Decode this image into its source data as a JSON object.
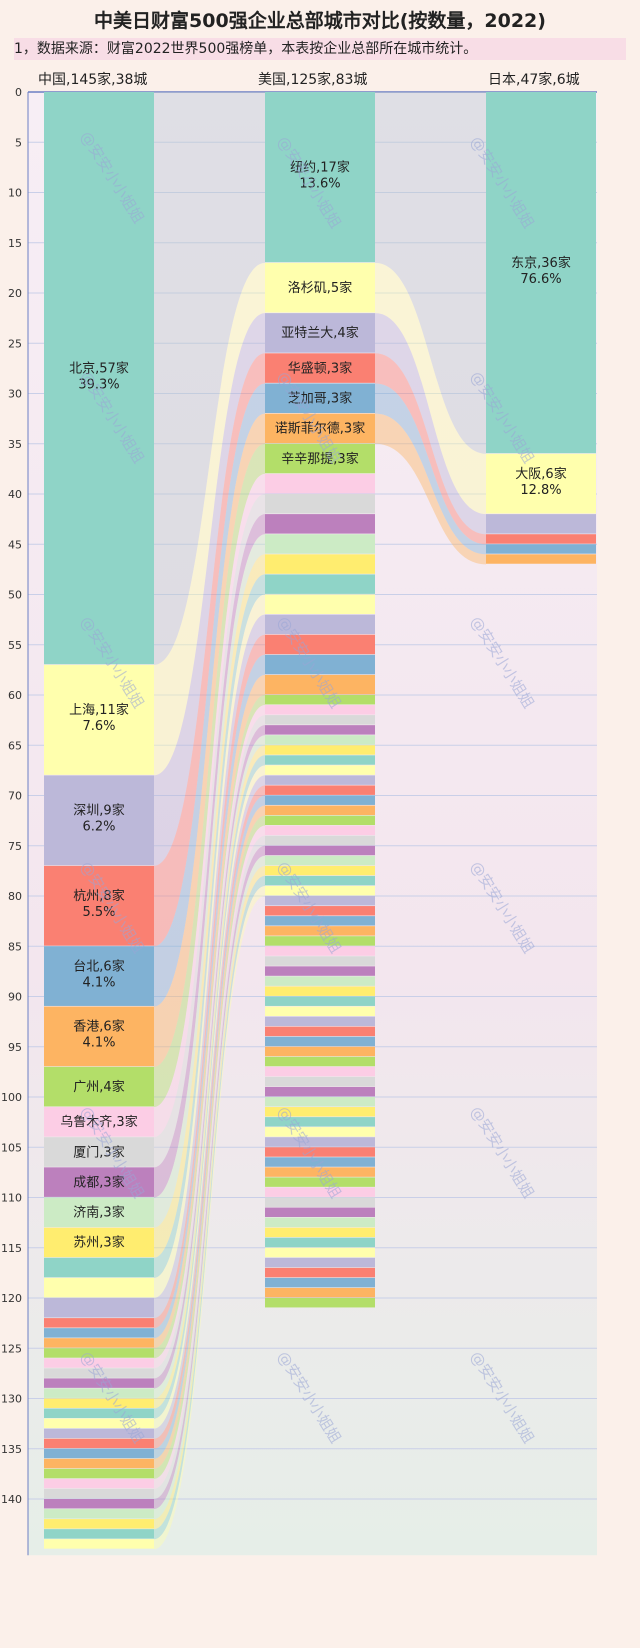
{
  "title": "中美日财富500强企业总部城市对比(按数量，2022)",
  "note": "1，数据来源：财富2022世界500强榜单，本表按企业总部所在城市统计。",
  "watermark": "@安安小小姐姐",
  "colors": {
    "background": "#fbf0ea",
    "axis": "#6c7fc4",
    "grid": "#c9cfe8",
    "band": "#bfcbcf",
    "palette": [
      "#8fd4c7",
      "#ffffad",
      "#bcb8d9",
      "#fa8072",
      "#80b1d3",
      "#fdb462",
      "#b3de69",
      "#fccde5",
      "#d9d9d9",
      "#bc80bd",
      "#ccebc5",
      "#ffed6f"
    ]
  },
  "chart_data": {
    "type": "sankey-stacked",
    "title": "中美日财富500强企业总部城市对比(按数量，2022)",
    "y_axis": {
      "min": 0,
      "max": 145,
      "ticks": [
        0,
        5,
        10,
        15,
        20,
        25,
        30,
        35,
        40,
        45,
        50,
        55,
        60,
        65,
        70,
        75,
        80,
        85,
        90,
        95,
        100,
        105,
        110,
        115,
        120,
        125,
        130,
        135,
        140
      ],
      "inverted": true
    },
    "columns": [
      {
        "key": "china",
        "header": "中国,145家,38城",
        "total": 145,
        "segments": [
          {
            "label": "北京,57家",
            "pct": "39.3%",
            "value": 57
          },
          {
            "label": "上海,11家",
            "pct": "7.6%",
            "value": 11
          },
          {
            "label": "深圳,9家",
            "pct": "6.2%",
            "value": 9
          },
          {
            "label": "杭州,8家",
            "pct": "5.5%",
            "value": 8
          },
          {
            "label": "台北,6家",
            "pct": "4.1%",
            "value": 6
          },
          {
            "label": "香港,6家",
            "pct": "4.1%",
            "value": 6
          },
          {
            "label": "广州,4家",
            "pct": "",
            "value": 4
          },
          {
            "label": "乌鲁木齐,3家",
            "pct": "",
            "value": 3
          },
          {
            "label": "厦门,3家",
            "pct": "",
            "value": 3
          },
          {
            "label": "成都,3家",
            "pct": "",
            "value": 3
          },
          {
            "label": "济南,3家",
            "pct": "",
            "value": 3
          },
          {
            "label": "苏州,3家",
            "pct": "",
            "value": 3
          },
          {
            "label": "",
            "pct": "",
            "value": 2
          },
          {
            "label": "",
            "pct": "",
            "value": 2
          },
          {
            "label": "",
            "pct": "",
            "value": 2
          },
          {
            "label": "",
            "pct": "",
            "value": 1
          },
          {
            "label": "",
            "pct": "",
            "value": 1
          },
          {
            "label": "",
            "pct": "",
            "value": 1
          },
          {
            "label": "",
            "pct": "",
            "value": 1
          },
          {
            "label": "",
            "pct": "",
            "value": 1
          },
          {
            "label": "",
            "pct": "",
            "value": 1
          },
          {
            "label": "",
            "pct": "",
            "value": 1
          },
          {
            "label": "",
            "pct": "",
            "value": 1
          },
          {
            "label": "",
            "pct": "",
            "value": 1
          },
          {
            "label": "",
            "pct": "",
            "value": 1
          },
          {
            "label": "",
            "pct": "",
            "value": 1
          },
          {
            "label": "",
            "pct": "",
            "value": 1
          },
          {
            "label": "",
            "pct": "",
            "value": 1
          },
          {
            "label": "",
            "pct": "",
            "value": 1
          },
          {
            "label": "",
            "pct": "",
            "value": 1
          },
          {
            "label": "",
            "pct": "",
            "value": 1
          },
          {
            "label": "",
            "pct": "",
            "value": 1
          },
          {
            "label": "",
            "pct": "",
            "value": 1
          },
          {
            "label": "",
            "pct": "",
            "value": 1
          },
          {
            "label": "",
            "pct": "",
            "value": 1
          },
          {
            "label": "",
            "pct": "",
            "value": 1
          },
          {
            "label": "",
            "pct": "",
            "value": 1
          },
          {
            "label": "",
            "pct": "",
            "value": 1
          }
        ]
      },
      {
        "key": "usa",
        "header": "美国,125家,83城",
        "total": 125,
        "segments": [
          {
            "label": "纽约,17家",
            "pct": "13.6%",
            "value": 17
          },
          {
            "label": "洛杉矶,5家",
            "pct": "",
            "value": 5
          },
          {
            "label": "亚特兰大,4家",
            "pct": "",
            "value": 4
          },
          {
            "label": "华盛顿,3家",
            "pct": "",
            "value": 3
          },
          {
            "label": "芝加哥,3家",
            "pct": "",
            "value": 3
          },
          {
            "label": "诺斯菲尔德,3家",
            "pct": "",
            "value": 3
          },
          {
            "label": "辛辛那提,3家",
            "pct": "",
            "value": 3
          },
          {
            "label": "",
            "pct": "",
            "value": 2
          },
          {
            "label": "",
            "pct": "",
            "value": 2
          },
          {
            "label": "",
            "pct": "",
            "value": 2
          },
          {
            "label": "",
            "pct": "",
            "value": 2
          },
          {
            "label": "",
            "pct": "",
            "value": 2
          },
          {
            "label": "",
            "pct": "",
            "value": 2
          },
          {
            "label": "",
            "pct": "",
            "value": 2
          },
          {
            "label": "",
            "pct": "",
            "value": 2
          },
          {
            "label": "",
            "pct": "",
            "value": 2
          },
          {
            "label": "",
            "pct": "",
            "value": 2
          },
          {
            "label": "",
            "pct": "",
            "value": 2
          },
          {
            "label": "",
            "pct": "",
            "value": 1
          },
          {
            "label": "",
            "pct": "",
            "value": 1
          },
          {
            "label": "",
            "pct": "",
            "value": 1
          },
          {
            "label": "",
            "pct": "",
            "value": 1
          },
          {
            "label": "",
            "pct": "",
            "value": 1
          },
          {
            "label": "",
            "pct": "",
            "value": 1
          },
          {
            "label": "",
            "pct": "",
            "value": 1
          },
          {
            "label": "",
            "pct": "",
            "value": 1
          },
          {
            "label": "",
            "pct": "",
            "value": 1
          },
          {
            "label": "",
            "pct": "",
            "value": 1
          },
          {
            "label": "",
            "pct": "",
            "value": 1
          },
          {
            "label": "",
            "pct": "",
            "value": 1
          },
          {
            "label": "",
            "pct": "",
            "value": 1
          },
          {
            "label": "",
            "pct": "",
            "value": 1
          },
          {
            "label": "",
            "pct": "",
            "value": 1
          },
          {
            "label": "",
            "pct": "",
            "value": 1
          },
          {
            "label": "",
            "pct": "",
            "value": 1
          },
          {
            "label": "",
            "pct": "",
            "value": 1
          },
          {
            "label": "",
            "pct": "",
            "value": 1
          },
          {
            "label": "",
            "pct": "",
            "value": 1
          },
          {
            "label": "",
            "pct": "",
            "value": 1
          },
          {
            "label": "",
            "pct": "",
            "value": 1
          },
          {
            "label": "",
            "pct": "",
            "value": 1
          },
          {
            "label": "",
            "pct": "",
            "value": 1
          },
          {
            "label": "",
            "pct": "",
            "value": 1
          },
          {
            "label": "",
            "pct": "",
            "value": 1
          },
          {
            "label": "",
            "pct": "",
            "value": 1
          },
          {
            "label": "",
            "pct": "",
            "value": 1
          },
          {
            "label": "",
            "pct": "",
            "value": 1
          },
          {
            "label": "",
            "pct": "",
            "value": 1
          },
          {
            "label": "",
            "pct": "",
            "value": 1
          },
          {
            "label": "",
            "pct": "",
            "value": 1
          },
          {
            "label": "",
            "pct": "",
            "value": 1
          },
          {
            "label": "",
            "pct": "",
            "value": 1
          },
          {
            "label": "",
            "pct": "",
            "value": 1
          },
          {
            "label": "",
            "pct": "",
            "value": 1
          },
          {
            "label": "",
            "pct": "",
            "value": 1
          },
          {
            "label": "",
            "pct": "",
            "value": 1
          },
          {
            "label": "",
            "pct": "",
            "value": 1
          },
          {
            "label": "",
            "pct": "",
            "value": 1
          },
          {
            "label": "",
            "pct": "",
            "value": 1
          },
          {
            "label": "",
            "pct": "",
            "value": 1
          },
          {
            "label": "",
            "pct": "",
            "value": 1
          },
          {
            "label": "",
            "pct": "",
            "value": 1
          },
          {
            "label": "",
            "pct": "",
            "value": 1
          },
          {
            "label": "",
            "pct": "",
            "value": 1
          },
          {
            "label": "",
            "pct": "",
            "value": 1
          },
          {
            "label": "",
            "pct": "",
            "value": 1
          },
          {
            "label": "",
            "pct": "",
            "value": 1
          },
          {
            "label": "",
            "pct": "",
            "value": 1
          },
          {
            "label": "",
            "pct": "",
            "value": 1
          },
          {
            "label": "",
            "pct": "",
            "value": 1
          },
          {
            "label": "",
            "pct": "",
            "value": 1
          },
          {
            "label": "",
            "pct": "",
            "value": 1
          },
          {
            "label": "",
            "pct": "",
            "value": 1
          },
          {
            "label": "",
            "pct": "",
            "value": 1
          },
          {
            "label": "",
            "pct": "",
            "value": 1
          },
          {
            "label": "",
            "pct": "",
            "value": 1
          },
          {
            "label": "",
            "pct": "",
            "value": 1
          },
          {
            "label": "",
            "pct": "",
            "value": 1
          },
          {
            "label": "",
            "pct": "",
            "value": 1
          }
        ]
      },
      {
        "key": "japan",
        "header": "日本,47家,6城",
        "total": 47,
        "segments": [
          {
            "label": "东京,36家",
            "pct": "76.6%",
            "value": 36
          },
          {
            "label": "大阪,6家",
            "pct": "12.8%",
            "value": 6
          },
          {
            "label": "",
            "pct": "",
            "value": 2
          },
          {
            "label": "",
            "pct": "",
            "value": 1
          },
          {
            "label": "",
            "pct": "",
            "value": 1
          },
          {
            "label": "",
            "pct": "",
            "value": 1
          }
        ]
      }
    ]
  }
}
